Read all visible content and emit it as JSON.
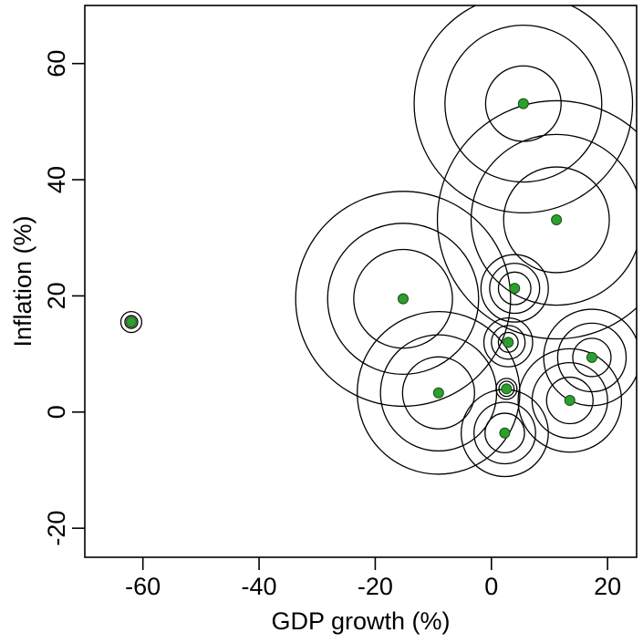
{
  "chart_data": {
    "type": "scatter",
    "title": "",
    "xlabel": "GDP growth (%)",
    "ylabel": "Inflation (%)",
    "xlim": [
      -70,
      25
    ],
    "ylim": [
      -25,
      70
    ],
    "xticks": [
      -60,
      -40,
      -20,
      0,
      20
    ],
    "yticks": [
      -20,
      0,
      20,
      40,
      60
    ],
    "xtick_labels": [
      "-60",
      "-40",
      "-20",
      "0",
      "20"
    ],
    "ytick_labels": [
      "-20",
      "0",
      "20",
      "40",
      "60"
    ],
    "grid": false,
    "legend": "none",
    "point_color": "#2ca02c",
    "ring_color": "#000000",
    "points": [
      {
        "x": -62.0,
        "y": 15.5,
        "rings": [
          1.1,
          1.8
        ]
      },
      {
        "x": -15.2,
        "y": 19.5,
        "rings": [
          8.5,
          13.0,
          18.5
        ]
      },
      {
        "x": -9.1,
        "y": 3.3,
        "rings": [
          6.2,
          10.0,
          14.0
        ]
      },
      {
        "x": 2.3,
        "y": -3.6,
        "rings": [
          3.4,
          5.3,
          7.5
        ]
      },
      {
        "x": 2.6,
        "y": 4.0,
        "rings": [
          0.8,
          1.3,
          1.8
        ]
      },
      {
        "x": 2.9,
        "y": 12.0,
        "rings": [
          1.7,
          2.9,
          4.2
        ]
      },
      {
        "x": 4.0,
        "y": 21.3,
        "rings": [
          2.8,
          4.3,
          5.8
        ]
      },
      {
        "x": 5.5,
        "y": 53.1,
        "rings": [
          6.5,
          13.5,
          18.8
        ]
      },
      {
        "x": 11.2,
        "y": 33.1,
        "rings": [
          9.1,
          14.7,
          20.5
        ]
      },
      {
        "x": 13.5,
        "y": 2.0,
        "rings": [
          4.0,
          6.5,
          8.9
        ]
      },
      {
        "x": 17.3,
        "y": 9.4,
        "rings": [
          3.3,
          5.9,
          8.3
        ]
      }
    ]
  }
}
